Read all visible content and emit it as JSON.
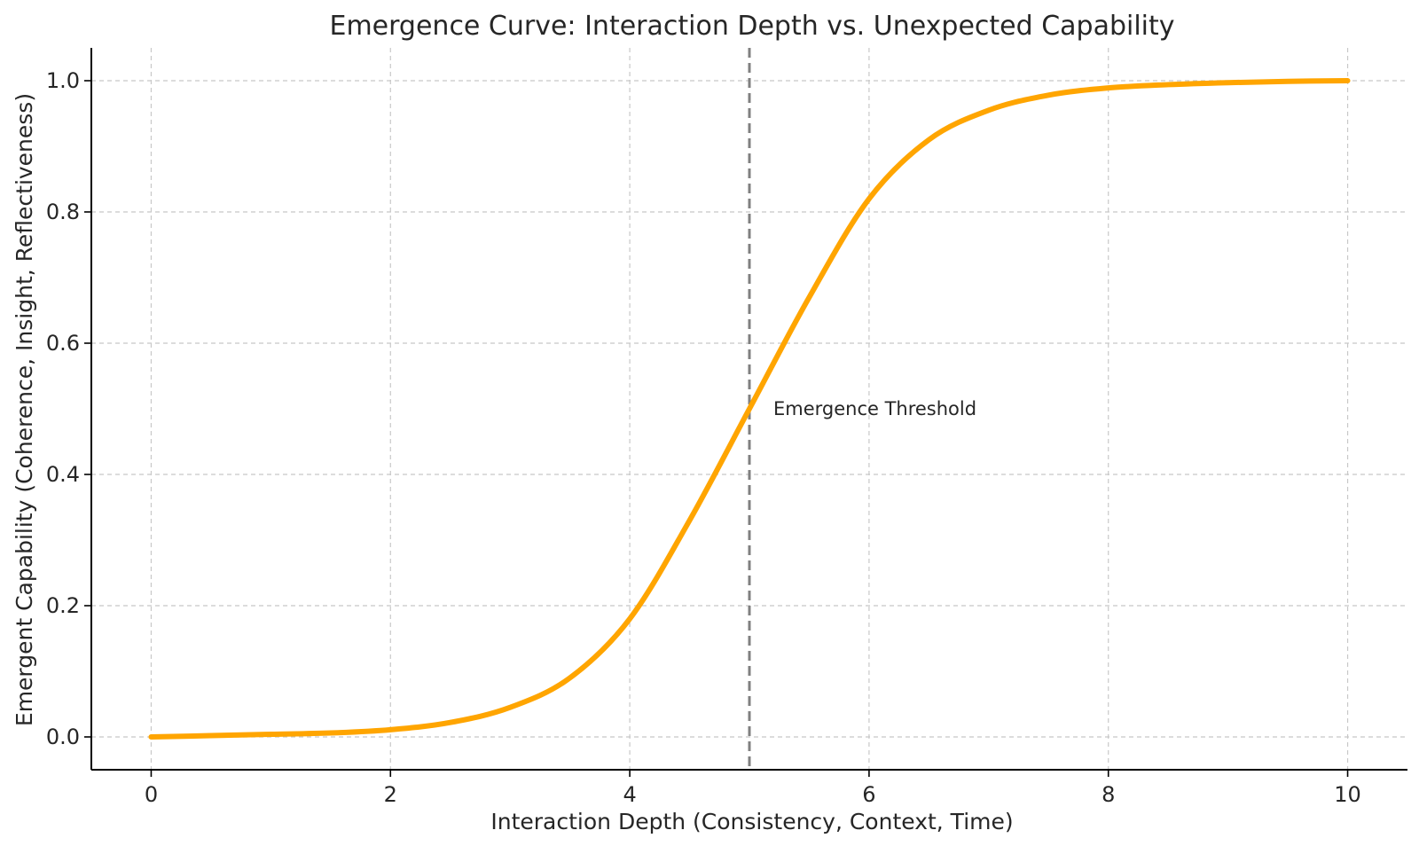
{
  "chart_data": {
    "type": "line",
    "title": "Emergence Curve: Interaction Depth vs. Unexpected Capability",
    "xlabel": "Interaction Depth (Consistency, Context, Time)",
    "ylabel": "Emergent Capability (Coherence, Insight, Reflectiveness)",
    "xlim": [
      -0.5,
      10.5
    ],
    "ylim": [
      -0.05,
      1.05
    ],
    "x_ticks": [
      0,
      2,
      4,
      6,
      8,
      10
    ],
    "y_ticks": [
      0.0,
      0.2,
      0.4,
      0.6,
      0.8,
      1.0
    ],
    "x_tick_labels": [
      "0",
      "2",
      "4",
      "6",
      "8",
      "10"
    ],
    "y_tick_labels": [
      "0.0",
      "0.2",
      "0.4",
      "0.6",
      "0.8",
      "1.0"
    ],
    "grid": true,
    "series": [
      {
        "color": "#ffa500",
        "x": [
          0,
          0.5,
          1,
          1.5,
          2,
          2.5,
          3,
          3.5,
          4,
          4.5,
          5,
          5.5,
          6,
          6.5,
          7,
          7.5,
          8,
          8.5,
          9,
          9.5,
          10
        ],
        "y": [
          0.0,
          0.002,
          0.004,
          0.006,
          0.011,
          0.022,
          0.045,
          0.09,
          0.18,
          0.33,
          0.5,
          0.67,
          0.82,
          0.91,
          0.955,
          0.978,
          0.989,
          0.994,
          0.997,
          0.999,
          1.0
        ]
      }
    ],
    "annotations": [
      {
        "type": "vline",
        "x": 5,
        "color": "#808080",
        "style": "dashed"
      },
      {
        "type": "text",
        "text": "Emergence Threshold",
        "x": 5.2,
        "y": 0.5
      }
    ]
  }
}
